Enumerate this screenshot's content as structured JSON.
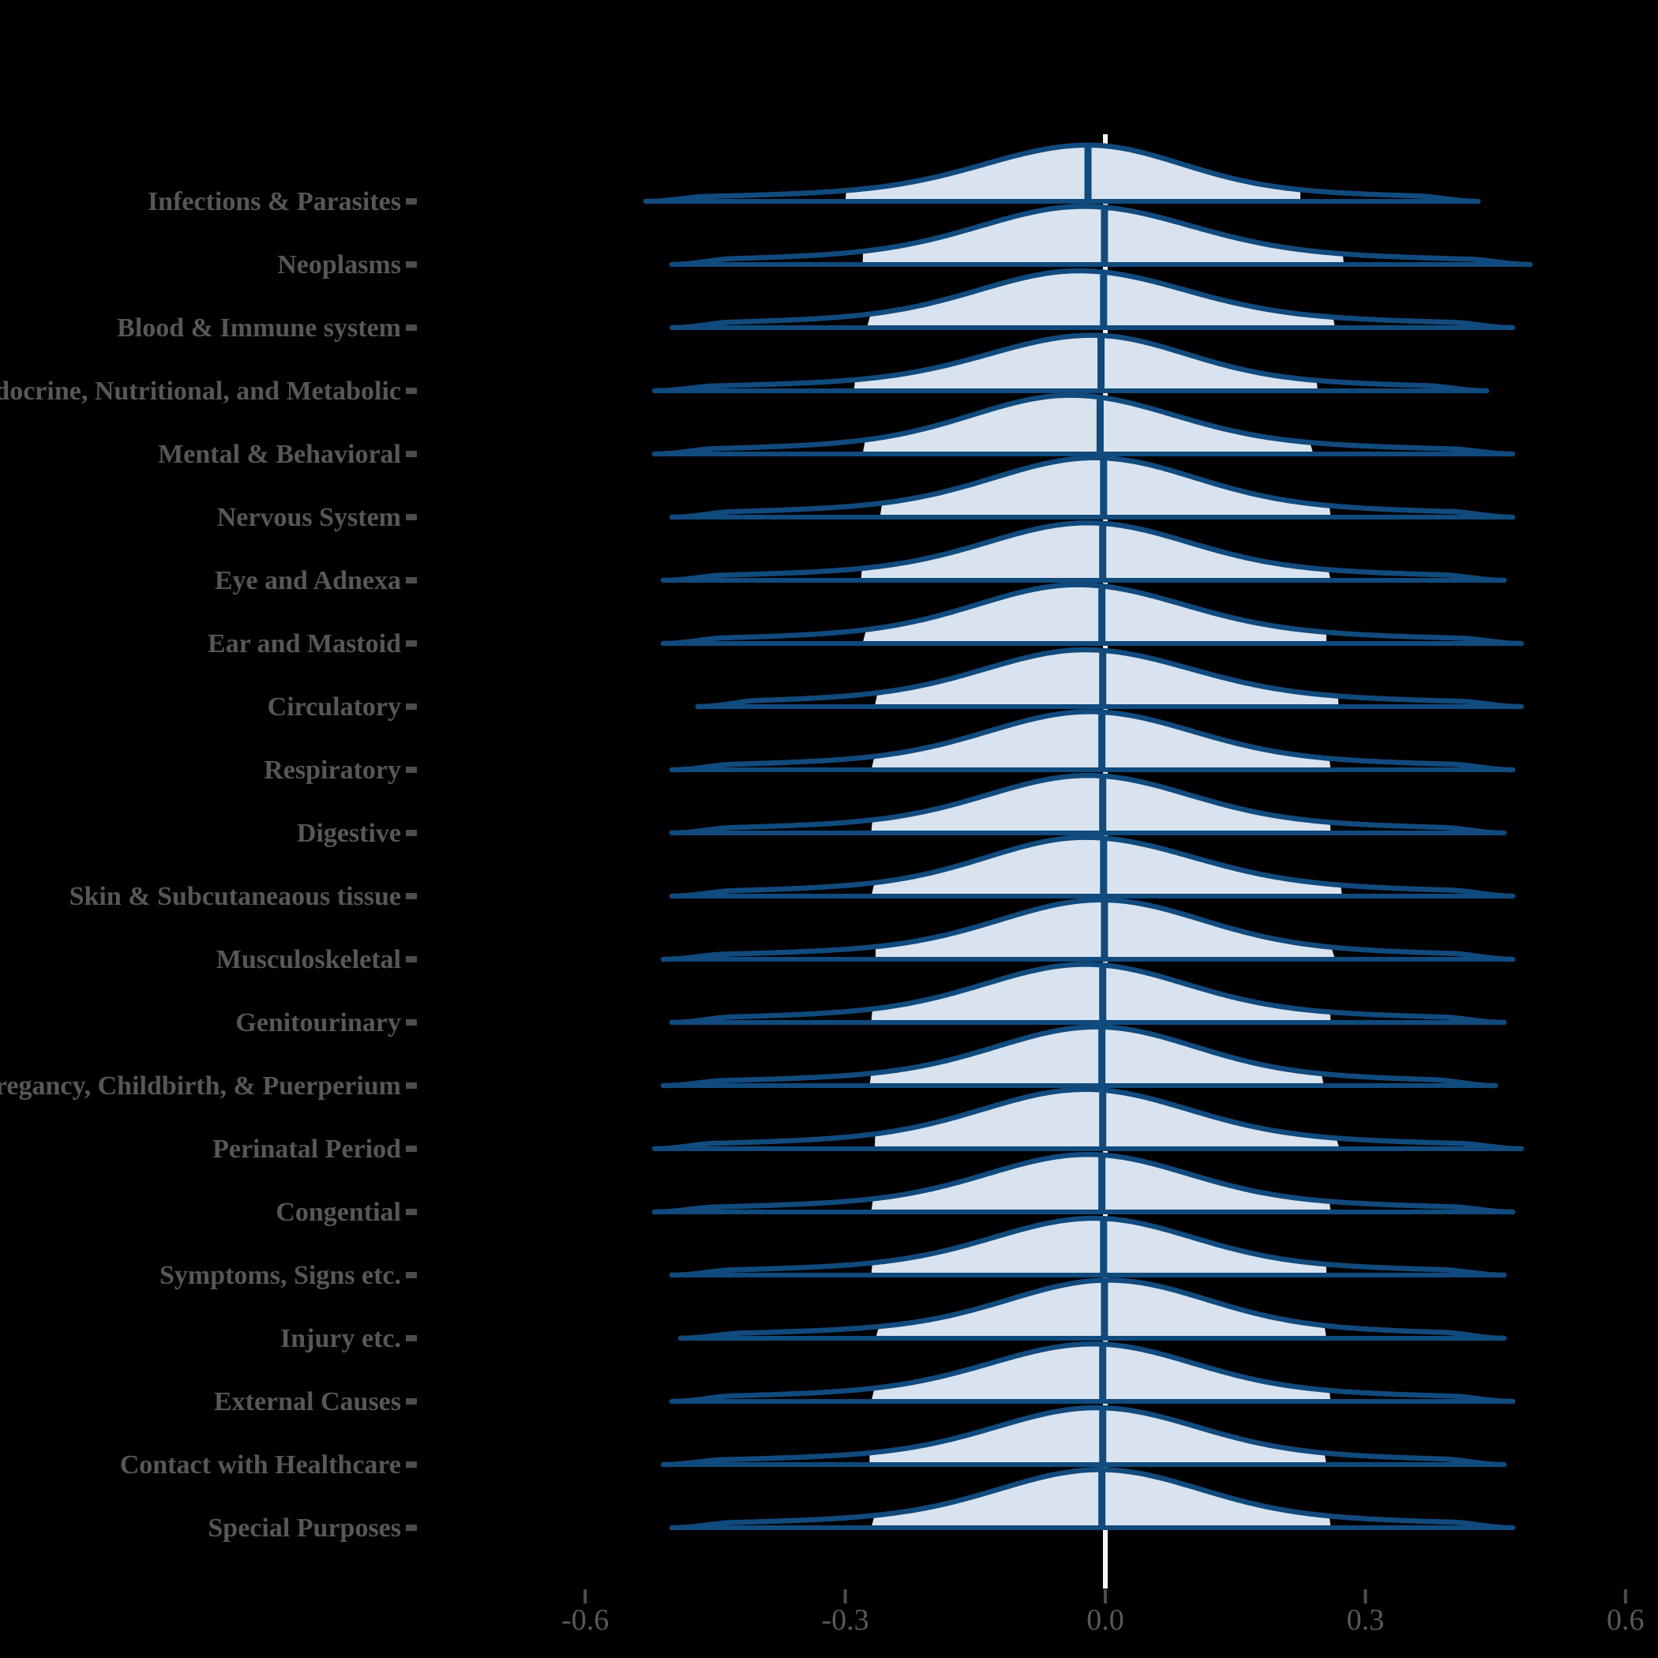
{
  "figure": {
    "title": "",
    "background": "#000000"
  },
  "colors": {
    "ridge_outline": "#114A7D",
    "ridge_fill": "#D9E3EF",
    "median_line": "#114A7D",
    "zero_reference_line": "#F5F5F5",
    "category_label_text": "#575757",
    "axis_tick_label_text": "#595959",
    "axis_tick_mark": "#4D4D4D"
  },
  "x_axis": {
    "tick_values": [
      -0.6,
      -0.3,
      0.0,
      0.3,
      0.6
    ],
    "tick_labels": [
      "-0.6",
      "-0.3",
      "0.0",
      "0.3",
      "0.6"
    ],
    "range": [
      -0.65,
      0.65
    ]
  },
  "chart_data": {
    "type": "area",
    "subtype": "ridgeline-density",
    "title": "",
    "xlabel": "",
    "ylabel": "",
    "x_ticks": [
      -0.6,
      -0.3,
      0.0,
      0.3,
      0.6
    ],
    "x_range": [
      -0.65,
      0.65
    ],
    "zero_line_x": 0.0,
    "legend": "none",
    "grid": "off",
    "categories": [
      "Infections & Parasites",
      "Neoplasms",
      "Blood & Immune system",
      "Endocrine, Nutritional, and Metabolic",
      "Mental & Behavioral",
      "Nervous System",
      "Eye and Adnexa",
      "Ear and Mastoid",
      "Circulatory",
      "Respiratory",
      "Digestive",
      "Skin & Subcutaneaous tissue",
      "Musculoskeletal",
      "Genitourinary",
      "Pregancy, Childbirth, & Puerperium",
      "Perinatal Period",
      "Congential",
      "Symptoms, Signs etc.",
      "Injury etc.",
      "External Causes",
      "Contact with Healthcare",
      "Special Purposes"
    ],
    "rows": [
      {
        "label": "Infections & Parasites",
        "min": -0.53,
        "fill_from": -0.3,
        "median": -0.02,
        "fill_to": 0.225,
        "max": 0.43,
        "mode": -0.02,
        "spread_left": 0.115,
        "spread_right": 0.105,
        "peak_height": 0.89
      },
      {
        "label": "Neoplasms",
        "min": -0.5,
        "fill_from": -0.28,
        "median": -0.001,
        "fill_to": 0.275,
        "max": 0.49,
        "mode": -0.025,
        "spread_left": 0.115,
        "spread_right": 0.12,
        "peak_height": 0.92
      },
      {
        "label": "Blood & Immune system",
        "min": -0.5,
        "fill_from": -0.275,
        "median": -0.002,
        "fill_to": 0.265,
        "max": 0.47,
        "mode": -0.03,
        "spread_left": 0.112,
        "spread_right": 0.118,
        "peak_height": 0.9
      },
      {
        "label": "Endocrine, Nutritional, and Metabolic",
        "min": -0.52,
        "fill_from": -0.29,
        "median": -0.005,
        "fill_to": 0.245,
        "max": 0.44,
        "mode": -0.015,
        "spread_left": 0.115,
        "spread_right": 0.105,
        "peak_height": 0.88
      },
      {
        "label": "Mental & Behavioral",
        "min": -0.52,
        "fill_from": -0.28,
        "median": -0.006,
        "fill_to": 0.24,
        "max": 0.47,
        "mode": -0.04,
        "spread_left": 0.11,
        "spread_right": 0.115,
        "peak_height": 0.93
      },
      {
        "label": "Nervous System",
        "min": -0.5,
        "fill_from": -0.26,
        "median": -0.002,
        "fill_to": 0.26,
        "max": 0.47,
        "mode": -0.012,
        "spread_left": 0.113,
        "spread_right": 0.112,
        "peak_height": 0.94
      },
      {
        "label": "Eye and Adnexa",
        "min": -0.51,
        "fill_from": -0.282,
        "median": -0.003,
        "fill_to": 0.26,
        "max": 0.46,
        "mode": -0.02,
        "spread_left": 0.112,
        "spread_right": 0.112,
        "peak_height": 0.91
      },
      {
        "label": "Ear and Mastoid",
        "min": -0.51,
        "fill_from": -0.28,
        "median": -0.004,
        "fill_to": 0.255,
        "max": 0.48,
        "mode": -0.032,
        "spread_left": 0.112,
        "spread_right": 0.118,
        "peak_height": 0.93
      },
      {
        "label": "Circulatory",
        "min": -0.47,
        "fill_from": -0.266,
        "median": -0.003,
        "fill_to": 0.269,
        "max": 0.48,
        "mode": -0.023,
        "spread_left": 0.112,
        "spread_right": 0.118,
        "peak_height": 0.9
      },
      {
        "label": "Respiratory",
        "min": -0.5,
        "fill_from": -0.27,
        "median": -0.004,
        "fill_to": 0.26,
        "max": 0.47,
        "mode": -0.018,
        "spread_left": 0.113,
        "spread_right": 0.115,
        "peak_height": 0.92
      },
      {
        "label": "Digestive",
        "min": -0.5,
        "fill_from": -0.27,
        "median": -0.003,
        "fill_to": 0.26,
        "max": 0.46,
        "mode": -0.02,
        "spread_left": 0.112,
        "spread_right": 0.113,
        "peak_height": 0.91
      },
      {
        "label": "Skin & Subcutaneaous tissue",
        "min": -0.5,
        "fill_from": -0.27,
        "median": -0.002,
        "fill_to": 0.273,
        "max": 0.47,
        "mode": -0.023,
        "spread_left": 0.11,
        "spread_right": 0.12,
        "peak_height": 0.93
      },
      {
        "label": "Musculoskeletal",
        "min": -0.51,
        "fill_from": -0.265,
        "median": -0.001,
        "fill_to": 0.265,
        "max": 0.47,
        "mode": -0.005,
        "spread_left": 0.113,
        "spread_right": 0.113,
        "peak_height": 0.94
      },
      {
        "label": "Genitourinary",
        "min": -0.5,
        "fill_from": -0.27,
        "median": -0.003,
        "fill_to": 0.26,
        "max": 0.46,
        "mode": -0.023,
        "spread_left": 0.112,
        "spread_right": 0.112,
        "peak_height": 0.92
      },
      {
        "label": "Pregancy, Childbirth, & Puerperium",
        "min": -0.51,
        "fill_from": -0.272,
        "median": -0.004,
        "fill_to": 0.252,
        "max": 0.45,
        "mode": -0.01,
        "spread_left": 0.112,
        "spread_right": 0.11,
        "peak_height": 0.93
      },
      {
        "label": "Perinatal Period",
        "min": -0.52,
        "fill_from": -0.266,
        "median": -0.003,
        "fill_to": 0.27,
        "max": 0.48,
        "mode": -0.023,
        "spread_left": 0.115,
        "spread_right": 0.115,
        "peak_height": 0.94
      },
      {
        "label": "Congential",
        "min": -0.52,
        "fill_from": -0.27,
        "median": -0.004,
        "fill_to": 0.26,
        "max": 0.47,
        "mode": -0.02,
        "spread_left": 0.112,
        "spread_right": 0.112,
        "peak_height": 0.91
      },
      {
        "label": "Symptoms, Signs etc.",
        "min": -0.5,
        "fill_from": -0.27,
        "median": -0.002,
        "fill_to": 0.255,
        "max": 0.46,
        "mode": -0.013,
        "spread_left": 0.112,
        "spread_right": 0.11,
        "peak_height": 0.9
      },
      {
        "label": "Injury etc.",
        "min": -0.49,
        "fill_from": -0.265,
        "median": -0.001,
        "fill_to": 0.255,
        "max": 0.46,
        "mode": 0.004,
        "spread_left": 0.112,
        "spread_right": 0.11,
        "peak_height": 0.92
      },
      {
        "label": "External Causes",
        "min": -0.5,
        "fill_from": -0.27,
        "median": -0.003,
        "fill_to": 0.26,
        "max": 0.47,
        "mode": -0.014,
        "spread_left": 0.115,
        "spread_right": 0.112,
        "peak_height": 0.91
      },
      {
        "label": "Contact with Healthcare",
        "min": -0.51,
        "fill_from": -0.272,
        "median": -0.003,
        "fill_to": 0.255,
        "max": 0.46,
        "mode": -0.01,
        "spread_left": 0.112,
        "spread_right": 0.112,
        "peak_height": 0.9
      },
      {
        "label": "Special Purposes",
        "min": -0.5,
        "fill_from": -0.27,
        "median": -0.004,
        "fill_to": 0.26,
        "max": 0.47,
        "mode": -0.006,
        "spread_left": 0.113,
        "spread_right": 0.112,
        "peak_height": 0.92
      }
    ]
  }
}
